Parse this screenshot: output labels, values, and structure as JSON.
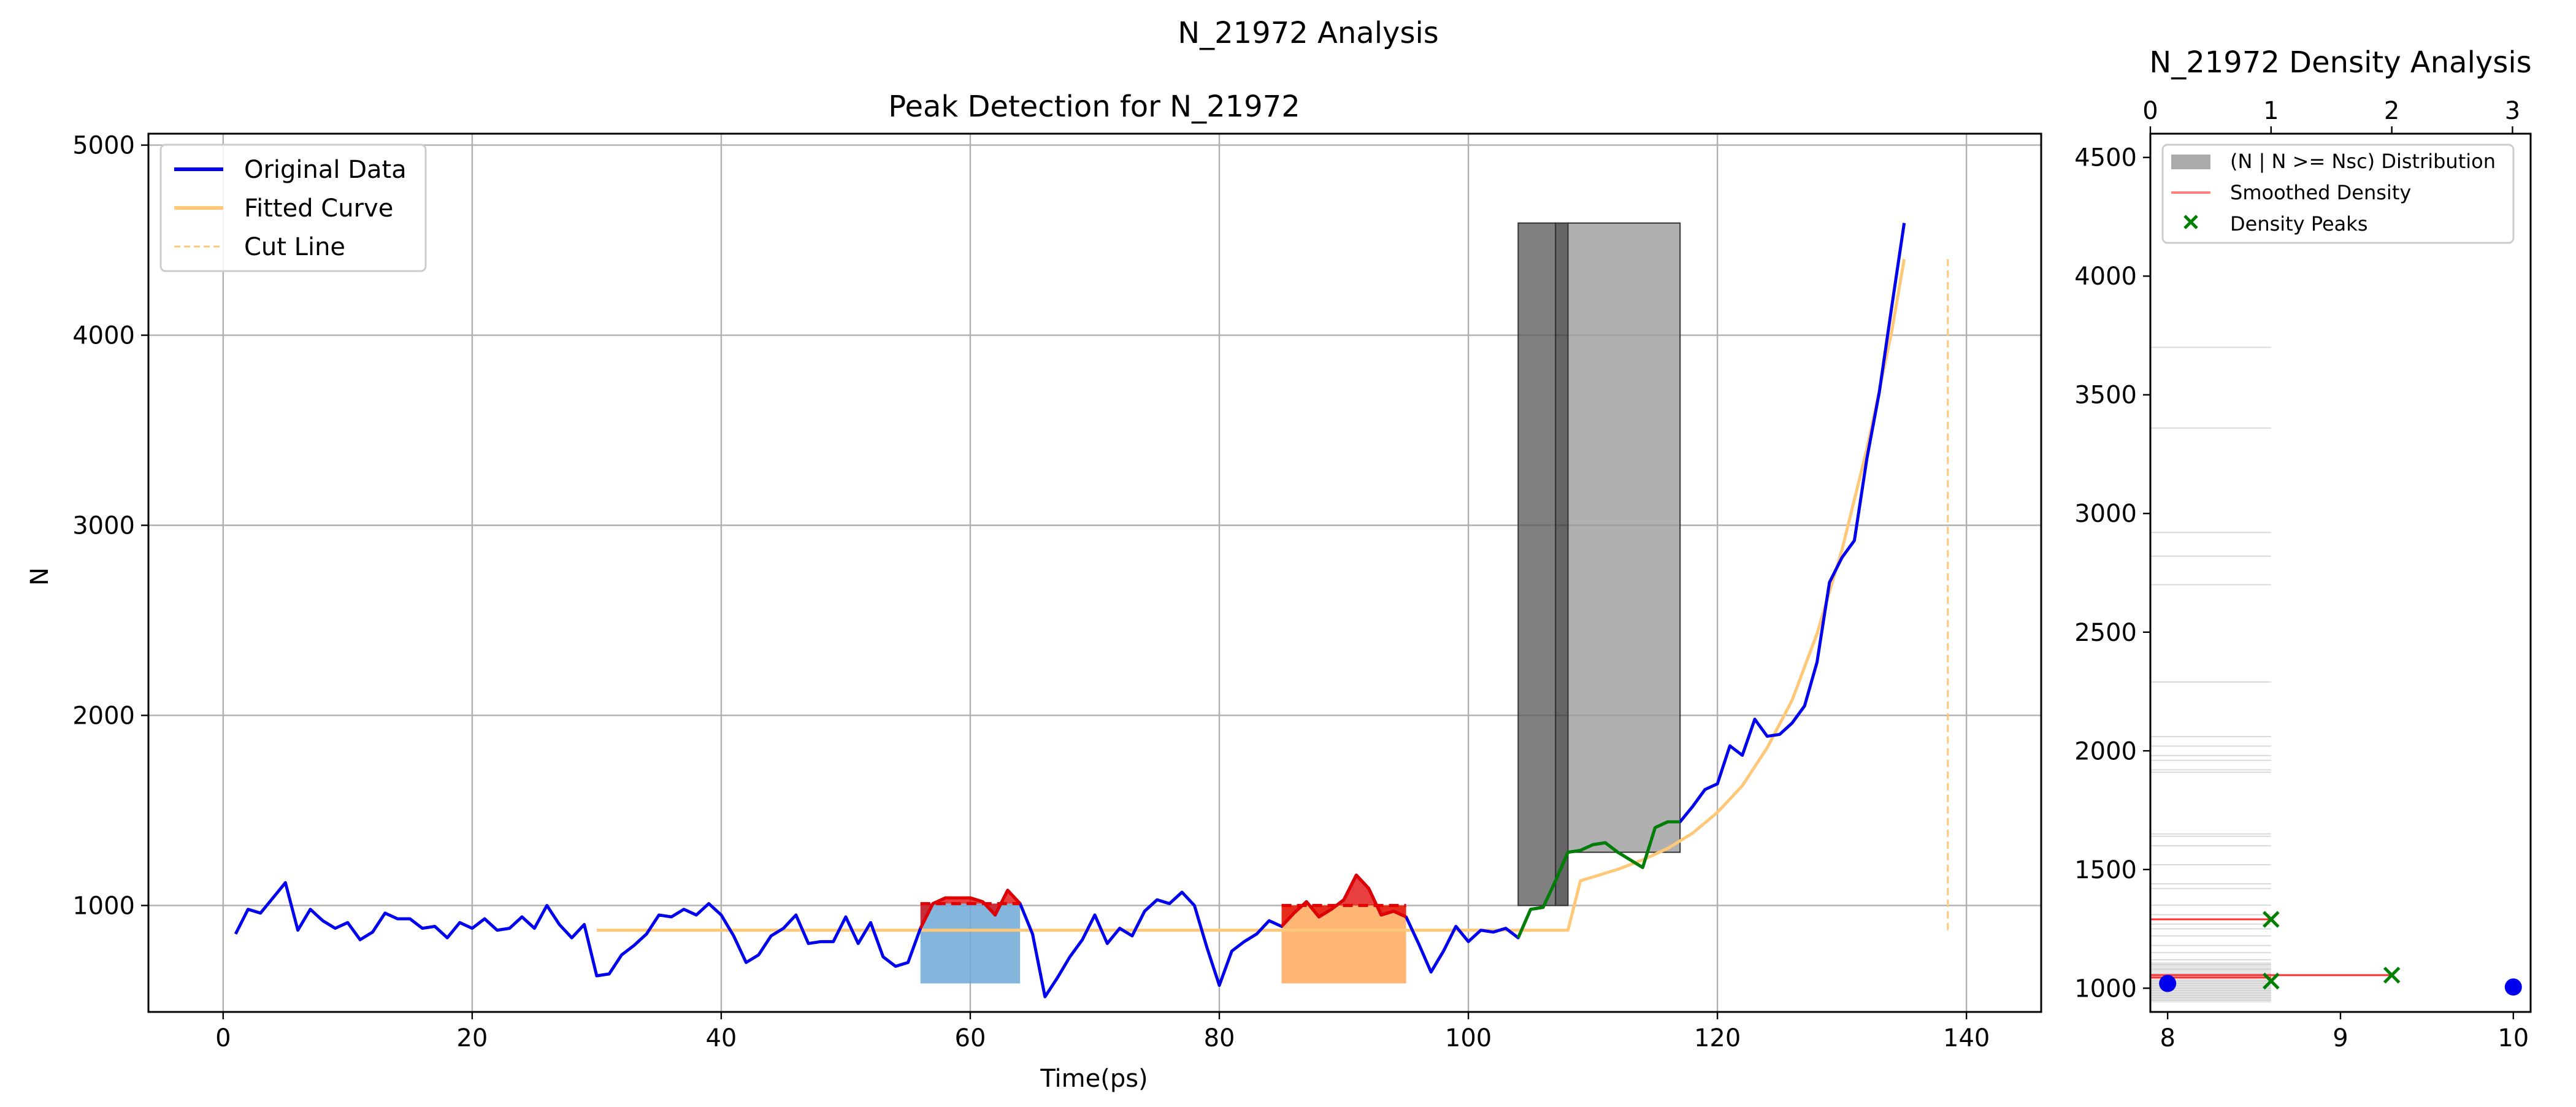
{
  "figure": {
    "suptitle": "N_21972 Analysis"
  },
  "chart_data": [
    {
      "type": "line",
      "title": "Peak Detection for N_21972",
      "xlabel": "Time(ps)",
      "ylabel": "N",
      "xlim": [
        -6,
        146
      ],
      "ylim": [
        440,
        5060
      ],
      "xticks": [
        0,
        20,
        40,
        60,
        80,
        100,
        120,
        140
      ],
      "yticks": [
        1000,
        2000,
        3000,
        4000,
        5000
      ],
      "grid": true,
      "legend": {
        "placement": "top-left",
        "entries": [
          "Original Data",
          "Fitted Curve",
          "Cut Line"
        ]
      },
      "colors": {
        "original": "#0000ee",
        "fitted": "#ffc878",
        "cut": "#ffc878",
        "peak": "#e00000",
        "rise": "#008000",
        "shade1": "#6fa8d6",
        "shade2": "#ffa85c",
        "gray_dark": "#555555",
        "gray_light": "#999999"
      },
      "series": [
        {
          "name": "Original Data",
          "x": [
            1,
            2,
            3,
            4,
            5,
            6,
            7,
            8,
            9,
            10,
            11,
            12,
            13,
            14,
            15,
            16,
            17,
            18,
            19,
            20,
            21,
            22,
            23,
            24,
            25,
            26,
            27,
            28,
            29,
            30,
            31,
            32,
            33,
            34,
            35,
            36,
            37,
            38,
            39,
            40,
            41,
            42,
            43,
            44,
            45,
            46,
            47,
            48,
            49,
            50,
            51,
            52,
            53,
            54,
            55,
            56,
            57,
            58,
            59,
            60,
            61,
            62,
            63,
            64,
            65,
            66,
            67,
            68,
            69,
            70,
            71,
            72,
            73,
            74,
            75,
            76,
            77,
            78,
            79,
            80,
            81,
            82,
            83,
            84,
            85,
            86,
            87,
            88,
            89,
            90,
            91,
            92,
            93,
            94,
            95,
            96,
            97,
            98,
            99,
            100,
            101,
            102,
            103,
            104,
            105,
            106,
            107,
            108,
            109,
            110,
            111,
            112,
            113,
            114,
            115,
            116,
            117,
            118,
            119,
            120,
            121,
            122,
            123,
            124,
            125,
            126,
            127,
            128,
            129,
            130,
            131,
            132,
            133,
            134,
            135
          ],
          "y": [
            850,
            980,
            960,
            1040,
            1120,
            870,
            980,
            920,
            880,
            910,
            820,
            860,
            960,
            930,
            930,
            880,
            890,
            830,
            910,
            880,
            930,
            870,
            880,
            940,
            880,
            1000,
            900,
            830,
            900,
            630,
            640,
            740,
            790,
            850,
            950,
            940,
            980,
            950,
            1010,
            950,
            840,
            700,
            740,
            840,
            880,
            950,
            800,
            810,
            810,
            940,
            800,
            910,
            730,
            680,
            700,
            880,
            1010,
            1040,
            1040,
            1040,
            1020,
            950,
            1080,
            1010,
            850,
            520,
            620,
            730,
            820,
            950,
            800,
            880,
            840,
            970,
            1030,
            1010,
            1070,
            1000,
            780,
            580,
            760,
            810,
            850,
            920,
            890,
            960,
            1020,
            940,
            980,
            1030,
            1160,
            1090,
            950,
            970,
            940,
            800,
            650,
            760,
            890,
            810,
            870,
            860,
            880,
            830,
            980,
            990,
            1130,
            1280,
            1290,
            1320,
            1330,
            1280,
            1240,
            1200,
            1410,
            1440,
            1440,
            1520,
            1610,
            1640,
            1840,
            1790,
            1980,
            1890,
            1900,
            1960,
            2050,
            2280,
            2700,
            2830,
            2920,
            3350,
            3700,
            4150,
            4590
          ]
        },
        {
          "name": "Fitted Curve",
          "x": [
            30,
            108,
            109,
            112,
            114,
            116,
            118,
            120,
            122,
            124,
            126,
            128,
            130,
            132,
            134,
            135
          ],
          "y": [
            870,
            870,
            1130,
            1190,
            1240,
            1300,
            1380,
            1490,
            1630,
            1830,
            2080,
            2430,
            2870,
            3400,
            4020,
            4400
          ]
        },
        {
          "name": "Cut Line",
          "x": [
            138.5,
            138.5
          ],
          "y": [
            870,
            4400
          ]
        }
      ],
      "peak_regions": [
        {
          "x_start": 56,
          "x_end": 64,
          "fill_bottom": 590,
          "mean_line": 1010
        },
        {
          "x_start": 85,
          "x_end": 95,
          "fill_bottom": 590,
          "mean_line": 1000
        }
      ],
      "rise_segment": {
        "x_start": 104,
        "x_end": 117
      },
      "bars": [
        {
          "x_start": 104,
          "x_end": 107,
          "top": 4590,
          "bottom": 1000,
          "shade": "dark"
        },
        {
          "x_start": 107,
          "x_end": 108,
          "top": 4590,
          "bottom": 1000,
          "shade": "darker"
        },
        {
          "x_start": 108,
          "x_end": 117,
          "top": 4590,
          "bottom": 1280,
          "shade": "light"
        }
      ]
    },
    {
      "type": "scatter",
      "title": "N_21972 Density Analysis",
      "top_xticks": [
        0,
        1,
        2,
        3
      ],
      "top_xlim": [
        0,
        3.15
      ],
      "bottom_xticks": [
        8,
        9,
        10
      ],
      "bottom_xlim": [
        7.9,
        10.1
      ],
      "ylim": [
        900,
        4600
      ],
      "yticks": [
        1000,
        1500,
        2000,
        2500,
        3000,
        3500,
        4000,
        4500
      ],
      "legend": {
        "placement": "top",
        "entries": [
          "(N | N >= Nsc) Distribution",
          "Smoothed Density",
          "Density Peaks"
        ]
      },
      "distribution_levels": [
        3700,
        3360,
        2920,
        2820,
        2700,
        2290,
        2060,
        2020,
        1980,
        1960,
        1920,
        1910,
        1650,
        1640,
        1600,
        1520,
        1440,
        1420,
        1350,
        1310,
        1290,
        1270,
        1250,
        1220,
        1180,
        1150,
        1120,
        1100,
        1080,
        1060,
        1045,
        1030,
        1020,
        1010,
        1000,
        990,
        980,
        970,
        960,
        950
      ],
      "smoothed_density": [
        {
          "value": 1.0,
          "y": 1290
        },
        {
          "value": 2.0,
          "y": 1055
        },
        {
          "value": 1.0,
          "y": 1045
        }
      ],
      "density_peaks": [
        {
          "x": 1.0,
          "y": 1290
        },
        {
          "x": 2.0,
          "y": 1055
        },
        {
          "x": 1.0,
          "y": 1030
        }
      ],
      "points": [
        {
          "x": 8.0,
          "y": 1020
        },
        {
          "x": 10.0,
          "y": 1005
        }
      ]
    }
  ]
}
